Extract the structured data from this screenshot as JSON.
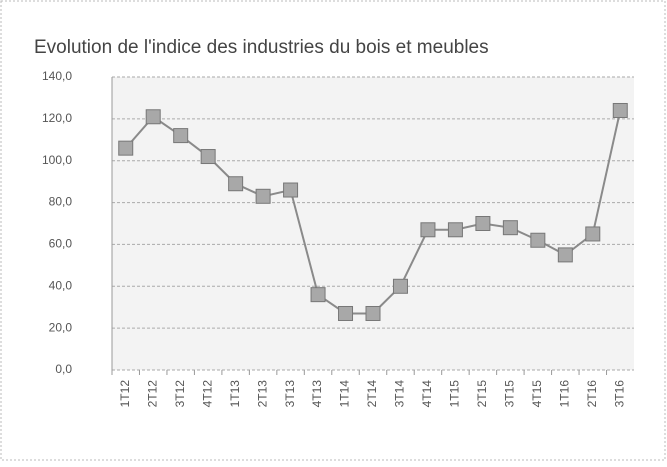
{
  "chart_data": {
    "type": "line",
    "title": "Evolution de l'indice des industries du bois et meubles",
    "categories": [
      "1T12",
      "2T12",
      "3T12",
      "4T12",
      "1T13",
      "2T13",
      "3T13",
      "4T13",
      "1T14",
      "2T14",
      "3T14",
      "4T14",
      "1T15",
      "2T15",
      "3T15",
      "4T15",
      "1T16",
      "2T16",
      "3T16"
    ],
    "values": [
      106,
      121,
      112,
      102,
      89,
      83,
      86,
      36,
      27,
      27,
      40,
      67,
      67,
      70,
      68,
      62,
      55,
      65,
      124
    ],
    "color": "#8a8a8a",
    "ylim": [
      0,
      140
    ],
    "yticks": [
      {
        "value": 0,
        "label": "0,0"
      },
      {
        "value": 20,
        "label": "20,0"
      },
      {
        "value": 40,
        "label": "40,0"
      },
      {
        "value": 60,
        "label": "60,0"
      },
      {
        "value": 80,
        "label": "80,0"
      },
      {
        "value": 100,
        "label": "100,0"
      },
      {
        "value": 120,
        "label": "120,0"
      },
      {
        "value": 140,
        "label": "140,0"
      }
    ],
    "grid": true
  }
}
